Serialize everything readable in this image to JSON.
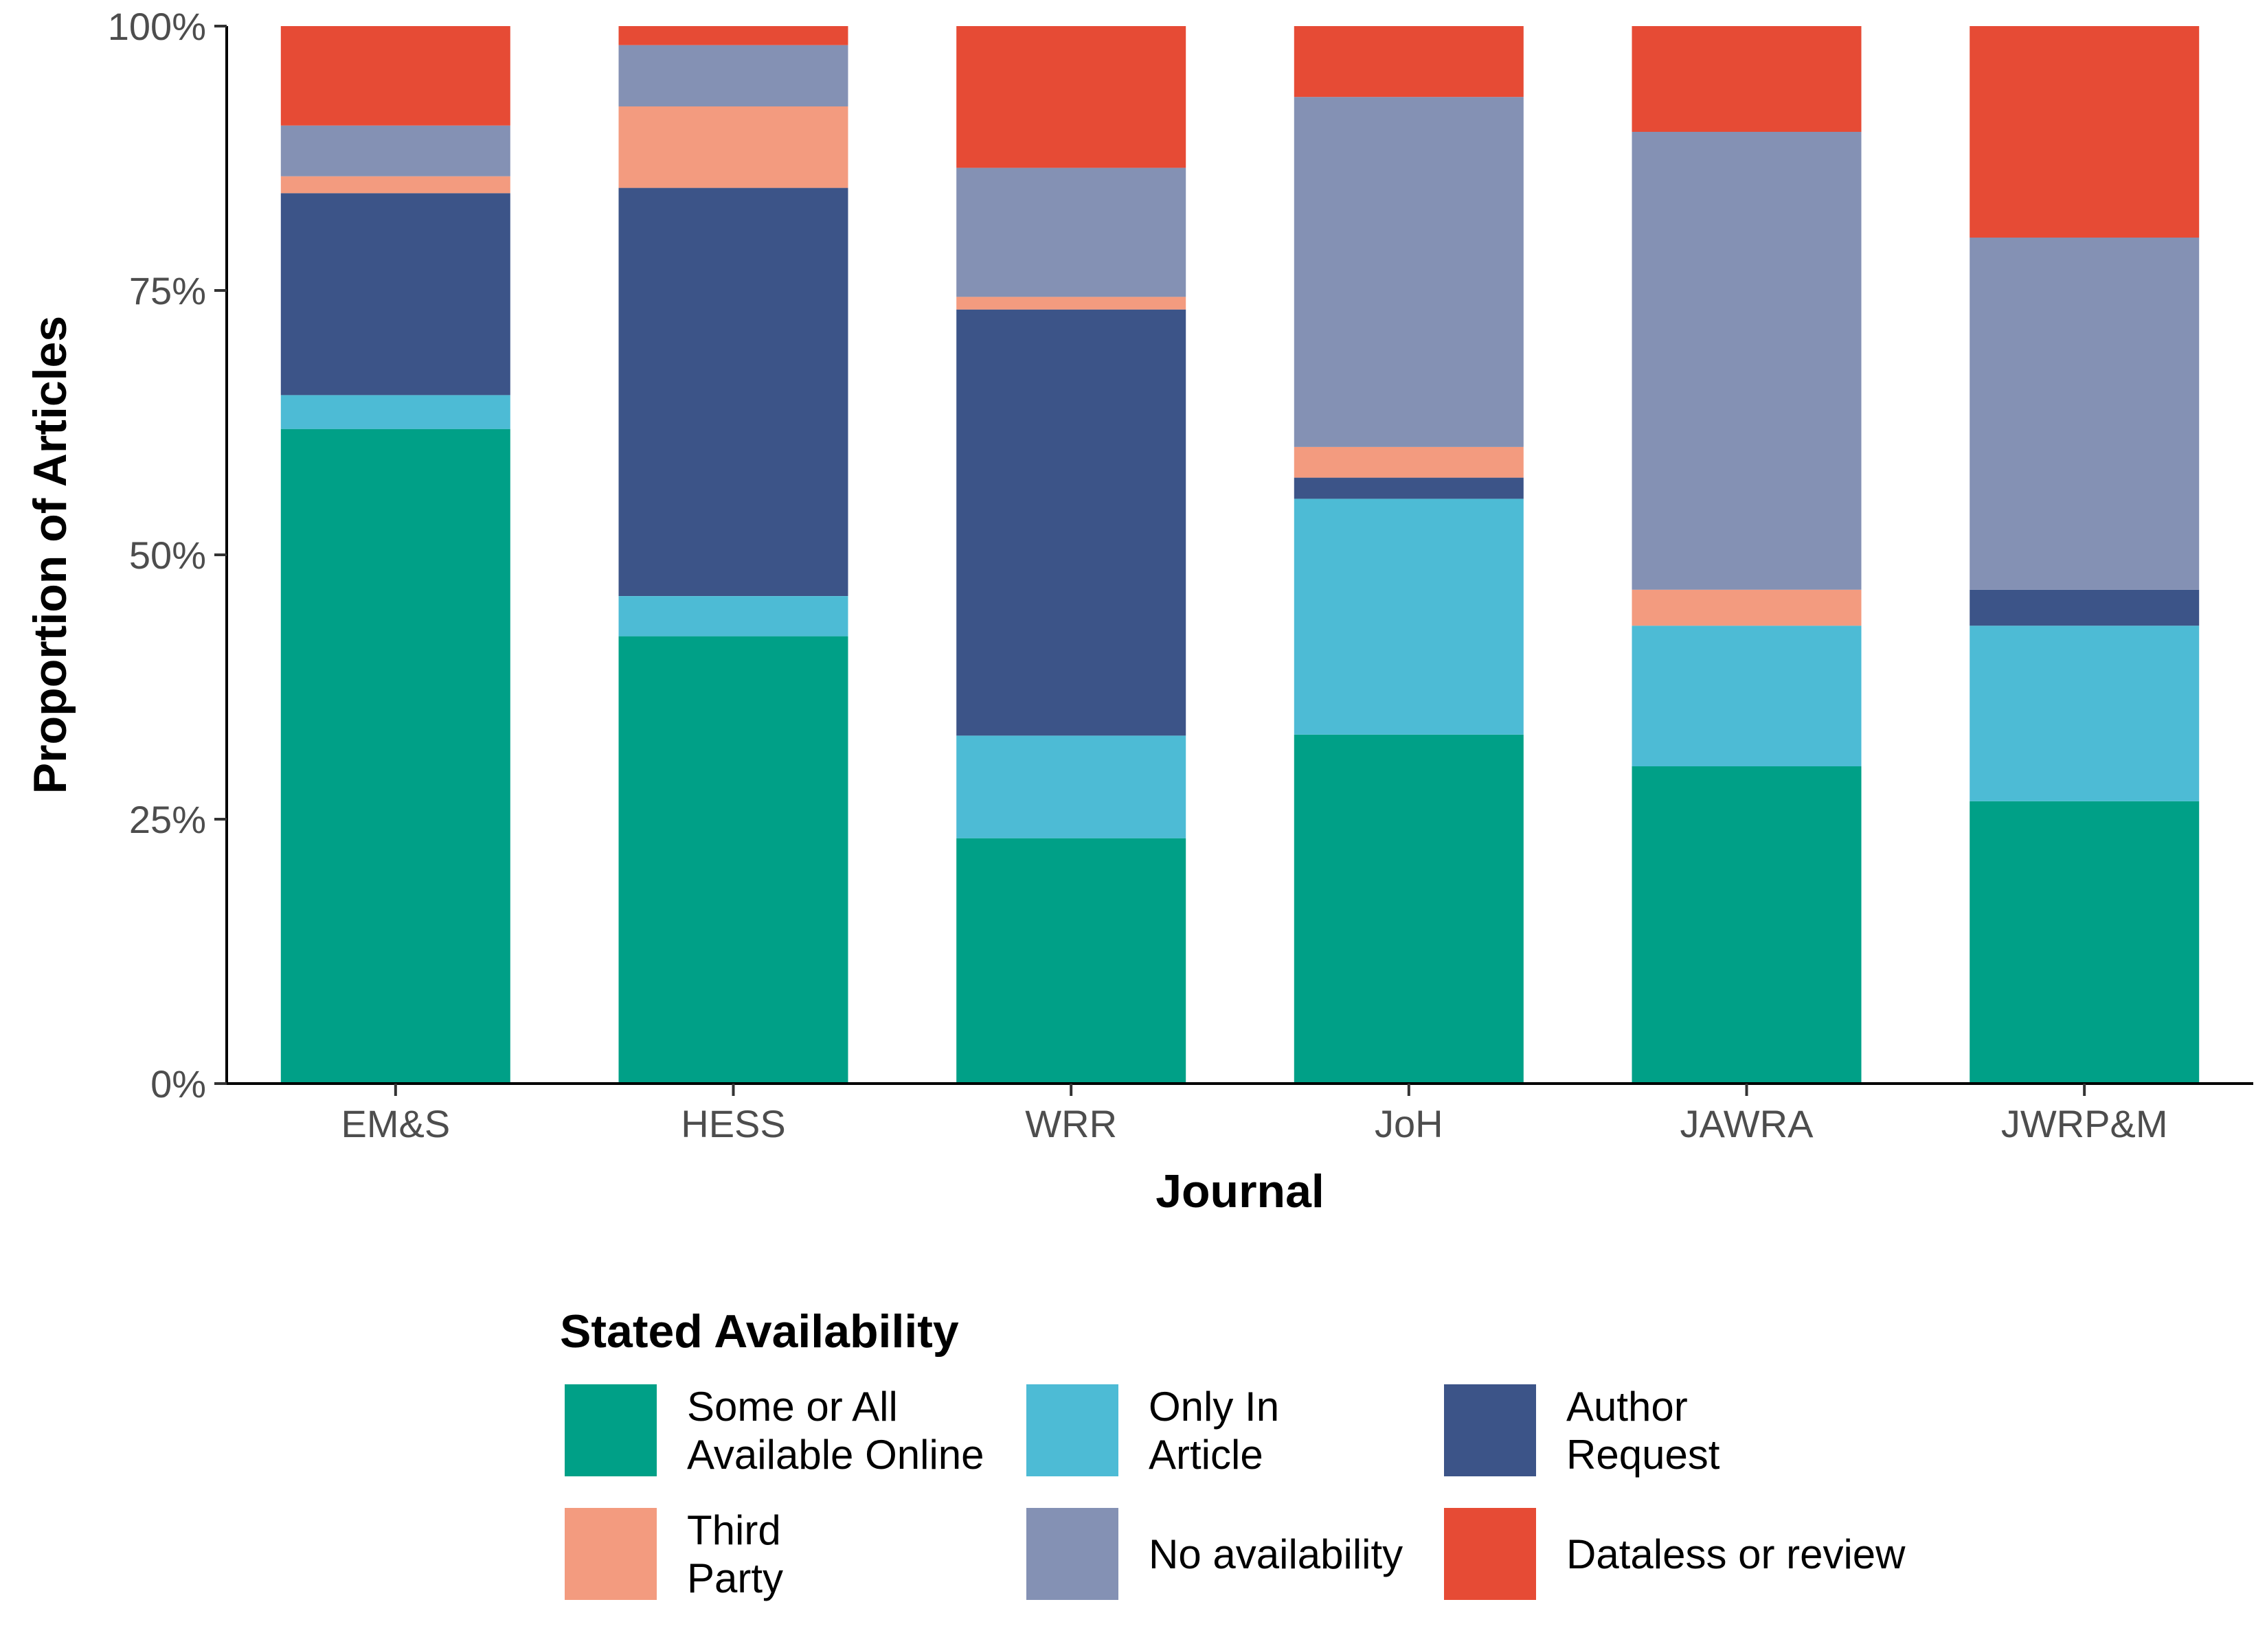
{
  "chart_data": {
    "type": "bar",
    "stacked": true,
    "categories": [
      "EM&S",
      "HESS",
      "WRR",
      "JoH",
      "JAWRA",
      "JWRP&M"
    ],
    "series": [
      {
        "name": "Some or All Available Online",
        "color": "#00A087",
        "values": [
          61.9,
          42.3,
          23.2,
          33.0,
          30.0,
          26.7
        ]
      },
      {
        "name": "Only In Article",
        "color": "#4DBBD5",
        "values": [
          3.2,
          3.8,
          9.7,
          22.3,
          13.3,
          16.6
        ]
      },
      {
        "name": "Author Request",
        "color": "#3C5488",
        "values": [
          19.1,
          38.6,
          40.3,
          2.0,
          0.0,
          3.4
        ]
      },
      {
        "name": "Third Party",
        "color": "#F39B7F",
        "values": [
          1.6,
          7.7,
          1.2,
          2.9,
          3.4,
          0.0
        ]
      },
      {
        "name": "No availability",
        "color": "#8491B4",
        "values": [
          4.8,
          5.8,
          12.2,
          33.1,
          43.3,
          33.3
        ]
      },
      {
        "name": "Dataless or review",
        "color": "#E64B35",
        "values": [
          9.4,
          1.8,
          13.4,
          6.7,
          10.0,
          20.0
        ]
      }
    ],
    "xlabel": "Journal",
    "ylabel": "Proportion of Articles",
    "ylim": [
      0,
      100
    ],
    "yticks": [
      "0%",
      "25%",
      "50%",
      "75%",
      "100%"
    ],
    "legend": {
      "title": "Stated Availability",
      "placement": "bottom",
      "entries": [
        {
          "lines": [
            "Some or All",
            "Available Online"
          ],
          "color": "#00A087"
        },
        {
          "lines": [
            "Only In",
            "Article"
          ],
          "color": "#4DBBD5"
        },
        {
          "lines": [
            "Author",
            "Request"
          ],
          "color": "#3C5488"
        },
        {
          "lines": [
            "Third",
            "Party"
          ],
          "color": "#F39B7F"
        },
        {
          "lines": [
            "No availability"
          ],
          "color": "#8491B4"
        },
        {
          "lines": [
            "Dataless or review"
          ],
          "color": "#E64B35"
        }
      ]
    },
    "grid": false
  }
}
